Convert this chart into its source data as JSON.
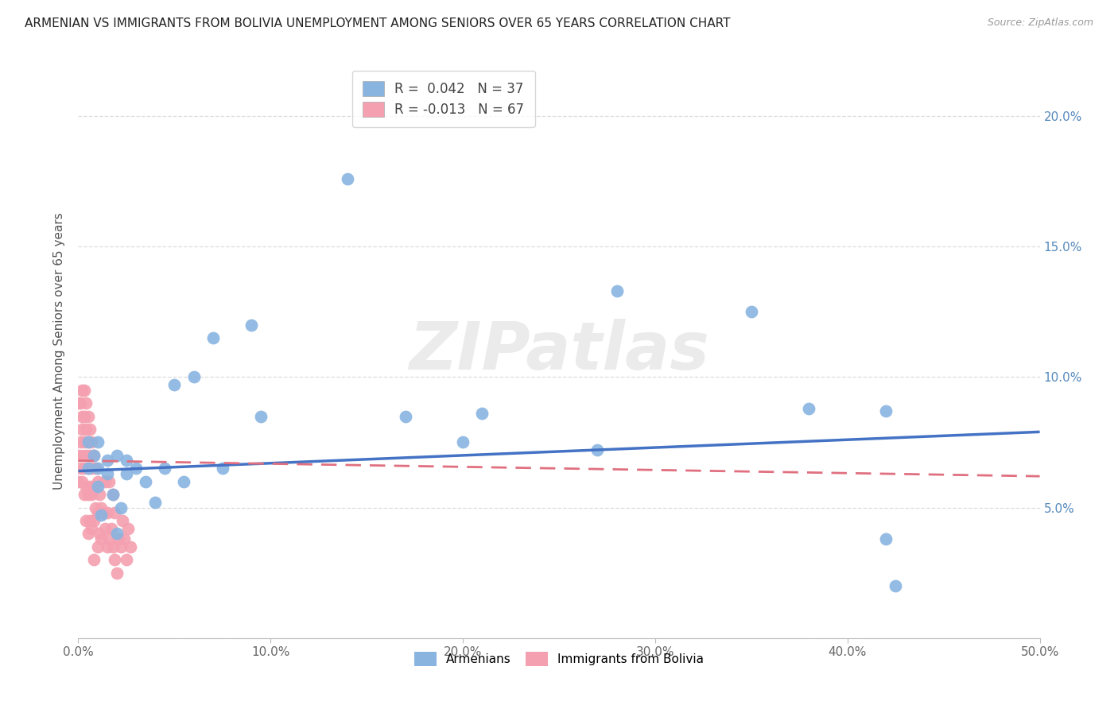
{
  "title": "ARMENIAN VS IMMIGRANTS FROM BOLIVIA UNEMPLOYMENT AMONG SENIORS OVER 65 YEARS CORRELATION CHART",
  "source": "Source: ZipAtlas.com",
  "ylabel": "Unemployment Among Seniors over 65 years",
  "xlim": [
    0,
    0.5
  ],
  "ylim": [
    0,
    0.22
  ],
  "xticks": [
    0.0,
    0.1,
    0.2,
    0.3,
    0.4,
    0.5
  ],
  "yticks": [
    0.0,
    0.05,
    0.1,
    0.15,
    0.2
  ],
  "xtick_labels": [
    "0.0%",
    "10.0%",
    "20.0%",
    "30.0%",
    "40.0%",
    "50.0%"
  ],
  "ytick_labels": [
    "",
    "5.0%",
    "10.0%",
    "15.0%",
    "20.0%"
  ],
  "legend_armenian_R": " 0.042",
  "legend_armenian_N": "37",
  "legend_bolivia_R": "-0.013",
  "legend_bolivia_N": "67",
  "blue_color": "#89B4E0",
  "pink_color": "#F4A0B0",
  "blue_line_color": "#4472C4",
  "pink_line_color": "#E07080",
  "watermark_text": "ZIPatlas",
  "armenian_x": [
    0.005,
    0.005,
    0.008,
    0.01,
    0.01,
    0.01,
    0.012,
    0.015,
    0.015,
    0.018,
    0.02,
    0.02,
    0.022,
    0.025,
    0.025,
    0.03,
    0.035,
    0.04,
    0.045,
    0.05,
    0.055,
    0.06,
    0.07,
    0.075,
    0.09,
    0.095,
    0.14,
    0.17,
    0.2,
    0.21,
    0.27,
    0.28,
    0.35,
    0.38,
    0.42,
    0.42,
    0.425
  ],
  "armenian_y": [
    0.065,
    0.075,
    0.07,
    0.065,
    0.075,
    0.058,
    0.047,
    0.063,
    0.068,
    0.055,
    0.04,
    0.07,
    0.05,
    0.063,
    0.068,
    0.065,
    0.06,
    0.052,
    0.065,
    0.097,
    0.06,
    0.1,
    0.115,
    0.065,
    0.12,
    0.085,
    0.176,
    0.085,
    0.075,
    0.086,
    0.072,
    0.133,
    0.125,
    0.088,
    0.087,
    0.038,
    0.02
  ],
  "bolivia_x": [
    0.0,
    0.0,
    0.0,
    0.001,
    0.001,
    0.001,
    0.002,
    0.002,
    0.002,
    0.002,
    0.002,
    0.003,
    0.003,
    0.003,
    0.003,
    0.003,
    0.004,
    0.004,
    0.004,
    0.004,
    0.004,
    0.005,
    0.005,
    0.005,
    0.005,
    0.005,
    0.006,
    0.006,
    0.006,
    0.006,
    0.007,
    0.007,
    0.007,
    0.007,
    0.008,
    0.008,
    0.008,
    0.008,
    0.009,
    0.009,
    0.01,
    0.01,
    0.01,
    0.011,
    0.011,
    0.012,
    0.012,
    0.013,
    0.014,
    0.014,
    0.015,
    0.015,
    0.016,
    0.016,
    0.017,
    0.018,
    0.018,
    0.019,
    0.019,
    0.02,
    0.021,
    0.022,
    0.023,
    0.024,
    0.025,
    0.026,
    0.027
  ],
  "bolivia_y": [
    0.07,
    0.06,
    0.09,
    0.065,
    0.075,
    0.09,
    0.095,
    0.085,
    0.08,
    0.07,
    0.06,
    0.095,
    0.085,
    0.075,
    0.065,
    0.055,
    0.09,
    0.08,
    0.07,
    0.058,
    0.045,
    0.085,
    0.075,
    0.065,
    0.055,
    0.04,
    0.08,
    0.07,
    0.058,
    0.045,
    0.075,
    0.065,
    0.055,
    0.042,
    0.07,
    0.058,
    0.045,
    0.03,
    0.065,
    0.05,
    0.06,
    0.048,
    0.035,
    0.055,
    0.04,
    0.05,
    0.038,
    0.048,
    0.06,
    0.042,
    0.035,
    0.048,
    0.06,
    0.038,
    0.042,
    0.055,
    0.035,
    0.048,
    0.03,
    0.025,
    0.038,
    0.035,
    0.045,
    0.038,
    0.03,
    0.042,
    0.035
  ],
  "arm_trend_x": [
    0.0,
    0.5
  ],
  "arm_trend_y": [
    0.064,
    0.079
  ],
  "bol_trend_x": [
    0.0,
    0.5
  ],
  "bol_trend_y": [
    0.068,
    0.062
  ]
}
